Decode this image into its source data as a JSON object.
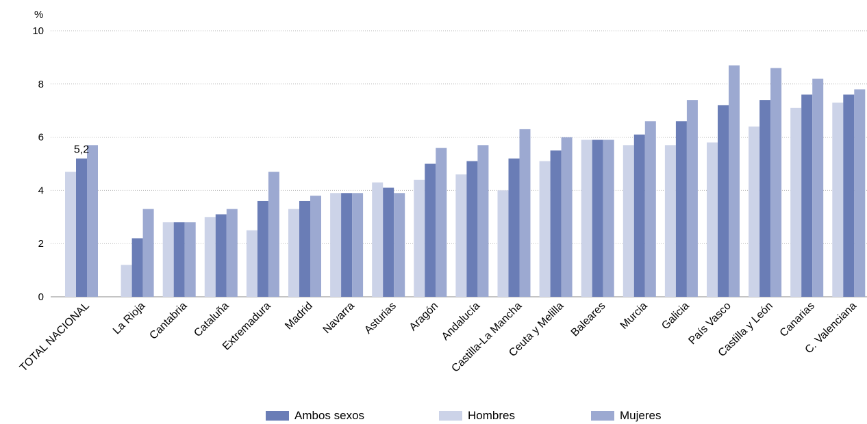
{
  "chart_data": {
    "type": "bar",
    "ylabel": "%",
    "ylim": [
      0,
      10
    ],
    "yticks": [
      0,
      2,
      4,
      6,
      8,
      10
    ],
    "grid": true,
    "legend_position": "bottom",
    "categories": [
      "TOTAL NACIONAL",
      "La Rioja",
      "Cantabria",
      "Cataluña",
      "Extremadura",
      "Madrid",
      "Navarra",
      "Asturias",
      "Aragón",
      "Andalucía",
      "Castilla-La Mancha",
      "Ceuta y Melilla",
      "Baleares",
      "Murcia",
      "Galicia",
      "País Vasco",
      "Castilla y León",
      "Canarias",
      "C. Valenciana"
    ],
    "series": [
      {
        "name": "Hombres",
        "color": "#ccd3e8",
        "values": [
          4.7,
          1.2,
          2.8,
          3.0,
          2.5,
          3.3,
          3.9,
          4.3,
          4.4,
          4.6,
          4.0,
          5.1,
          5.9,
          5.7,
          5.7,
          5.8,
          6.4,
          7.1,
          7.3
        ]
      },
      {
        "name": "Ambos sexos",
        "color": "#6a7db6",
        "values": [
          5.2,
          2.2,
          2.8,
          3.1,
          3.6,
          3.6,
          3.9,
          4.1,
          5.0,
          5.1,
          5.2,
          5.5,
          5.9,
          6.1,
          6.6,
          7.2,
          7.4,
          7.6,
          7.6
        ]
      },
      {
        "name": "Mujeres",
        "color": "#9ca9d1",
        "values": [
          5.7,
          3.3,
          2.8,
          3.3,
          4.7,
          3.8,
          3.9,
          3.9,
          5.6,
          5.7,
          6.3,
          6.0,
          5.9,
          6.6,
          7.4,
          8.7,
          8.6,
          8.2,
          7.8
        ]
      }
    ],
    "annotations": [
      {
        "category": "TOTAL NACIONAL",
        "series": "Ambos sexos",
        "text": "5,2"
      }
    ]
  },
  "legend": [
    {
      "label": "Ambos sexos",
      "color": "#6a7db6"
    },
    {
      "label": "Hombres",
      "color": "#ccd3e8"
    },
    {
      "label": "Mujeres",
      "color": "#9ca9d1"
    }
  ]
}
